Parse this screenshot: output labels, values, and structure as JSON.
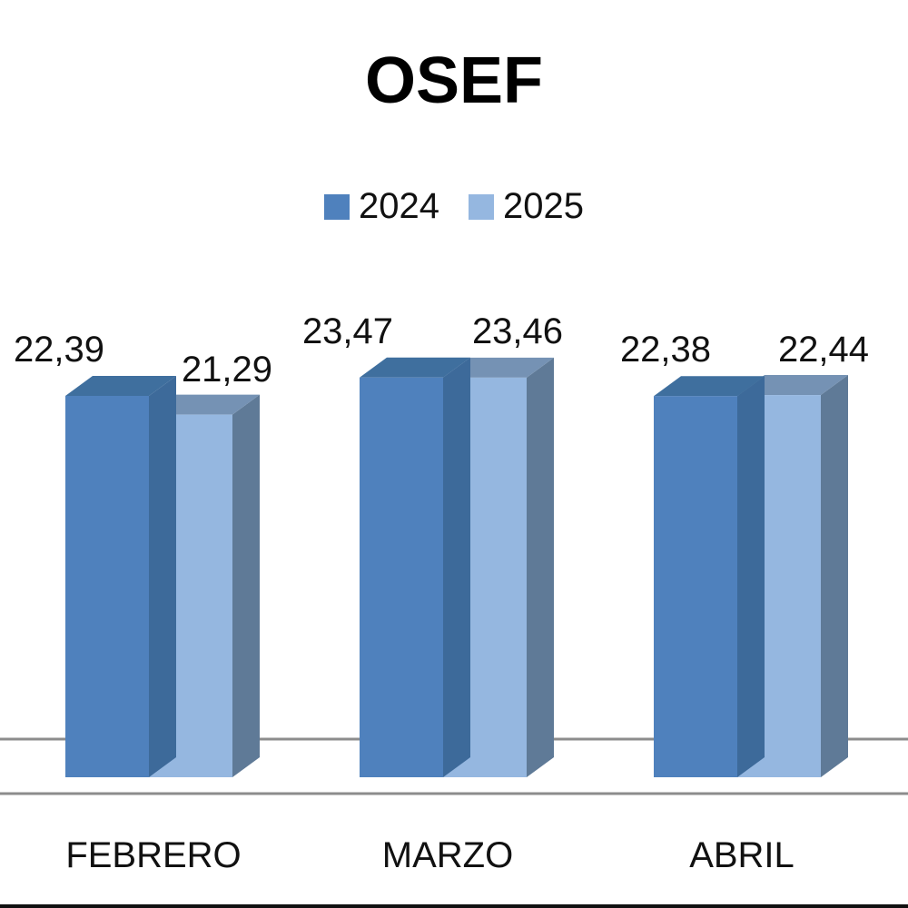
{
  "chart_data": {
    "type": "bar",
    "title": "OSEF",
    "categories": [
      "FEBRERO",
      "MARZO",
      "ABRIL"
    ],
    "series": [
      {
        "name": "2024",
        "color": "#4f81bd",
        "values": [
          22.39,
          23.47,
          22.38
        ],
        "labels": [
          "22,39",
          "23,47",
          "22,38"
        ]
      },
      {
        "name": "2025",
        "color": "#95b7e0",
        "values": [
          21.29,
          23.46,
          22.44
        ],
        "labels": [
          "21,29",
          "23,46",
          "22,44"
        ]
      }
    ],
    "style": "3d-clustered-column",
    "grid": false,
    "legend_position": "top"
  }
}
